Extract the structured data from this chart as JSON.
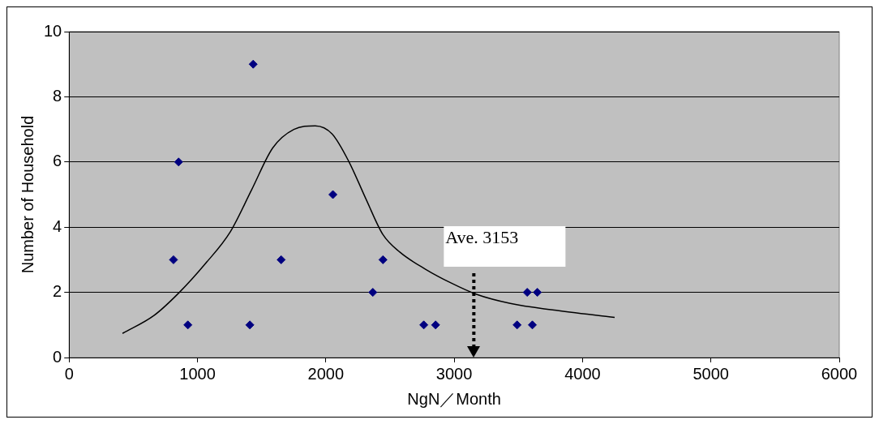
{
  "chart_data": {
    "type": "scatter",
    "xlabel": "NgN／Month",
    "ylabel": "Number of Household",
    "xlim": [
      0,
      6000
    ],
    "xticks": [
      0,
      1000,
      2000,
      3000,
      4000,
      5000,
      6000
    ],
    "ylim": [
      0,
      10
    ],
    "yticks": [
      0,
      2,
      4,
      6,
      8,
      10
    ],
    "grid": "y",
    "legend": false,
    "series": [
      {
        "type": "scatter",
        "color": "#000080",
        "marker": "diamond",
        "x": [
          813,
          853,
          925,
          1434,
          1408,
          1652,
          2055,
          2366,
          2445,
          2763,
          2855,
          3490,
          3569,
          3609,
          3648
        ],
        "values": [
          3,
          6,
          1,
          9,
          1,
          3,
          5,
          2,
          3,
          1,
          1,
          1,
          2,
          1,
          2
        ]
      },
      {
        "type": "line",
        "color": "#000000",
        "marker": "none",
        "line_style": "solid",
        "x": [
          416,
          661,
          859,
          1057,
          1256,
          1421,
          1586,
          1751,
          1917,
          2049,
          2181,
          2313,
          2445,
          2578,
          2776,
          2974,
          3173,
          3437,
          3767,
          4250
        ],
        "values": [
          0.74,
          1.29,
          2,
          2.86,
          3.86,
          5.14,
          6.43,
          7,
          7.11,
          6.86,
          6,
          4.86,
          3.77,
          3.23,
          2.71,
          2.29,
          1.94,
          1.66,
          1.46,
          1.23
        ]
      }
    ],
    "ref_lines": [
      {
        "axis": "x",
        "value": 3153,
        "label": "Ave. 3153",
        "color": "#000000",
        "line_style": "dotted"
      }
    ]
  }
}
